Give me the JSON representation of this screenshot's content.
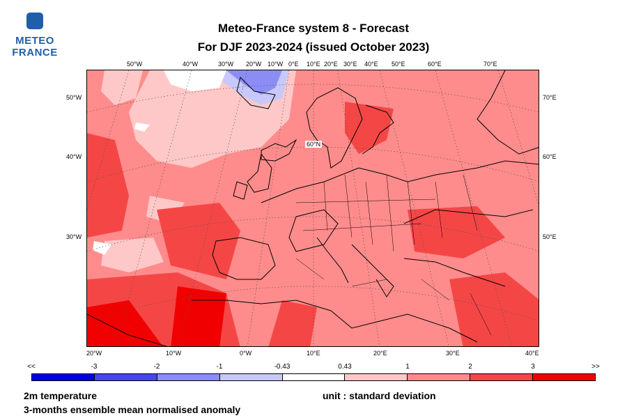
{
  "logo": {
    "line1": "METEO",
    "line2": "FRANCE",
    "brand_color": "#1f5fa8"
  },
  "title": {
    "line1": "Meteo-France system 8  -  Forecast",
    "line2": "For DJF 2023-2024      (issued October 2023)"
  },
  "map": {
    "top_labels": [
      "50°W",
      "40°W",
      "30°W",
      "20°W",
      "10°W",
      "0°E",
      "10°E",
      "20°E",
      "30°E",
      "40°E",
      "50°E",
      "60°E",
      "70°E"
    ],
    "left_labels": [
      "50°W",
      "40°W",
      "30°W"
    ],
    "right_labels": [
      "70°E",
      "60°E",
      "50°E"
    ],
    "bottom_labels": [
      "20°W",
      "10°W",
      "0°W",
      "10°E",
      "20°E",
      "30°E",
      "40°E"
    ],
    "lat_label": "60°N"
  },
  "colorbar": {
    "labels": [
      "<<",
      "-3",
      "-2",
      "-1",
      "-0.43",
      "0.43",
      "1",
      "2",
      "3",
      ">>"
    ],
    "colors": [
      "#0000e6",
      "#4646f0",
      "#8c8cf5",
      "#c8c8fa",
      "#ffffff",
      "#ffc8c8",
      "#ff8c8c",
      "#f54646",
      "#f00000"
    ]
  },
  "footer": {
    "variable": "2m temperature",
    "description": "3-months ensemble mean normalised anomaly",
    "unit": "unit : standard deviation"
  }
}
